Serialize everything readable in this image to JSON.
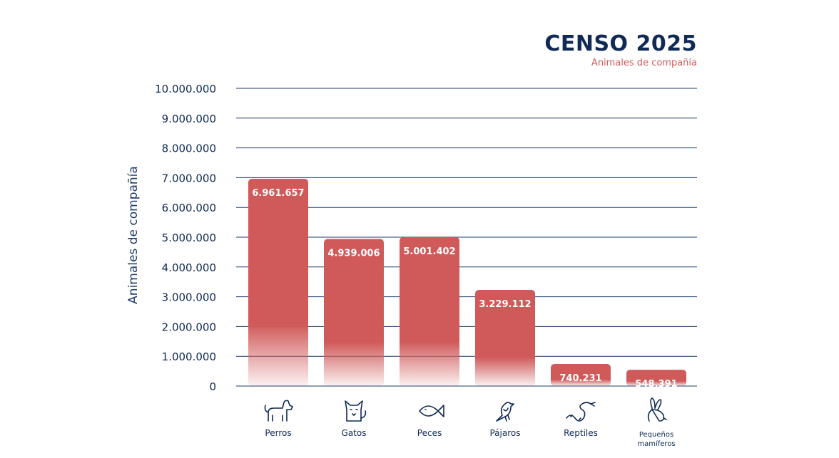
{
  "chart_data": {
    "type": "bar",
    "title": "CENSO 2025",
    "subtitle": "Animales de compañía",
    "ylabel": "Animales de compañía",
    "xlabel": "",
    "ylim": [
      0,
      10000000
    ],
    "grid": true,
    "categories": [
      "Perros",
      "Gatos",
      "Peces",
      "Pájaros",
      "Reptiles",
      "Pequeños mamíferos"
    ],
    "category_lines": [
      [
        "Perros"
      ],
      [
        "Gatos"
      ],
      [
        "Peces"
      ],
      [
        "Pájaros"
      ],
      [
        "Reptiles"
      ],
      [
        "Pequeños",
        "mamíferos"
      ]
    ],
    "values": [
      6961657,
      4939006,
      5001402,
      3229112,
      740231,
      548391
    ],
    "value_labels": [
      "6.961.657",
      "4.939.006",
      "5.001.402",
      "3.229.112",
      "740.231",
      "548.391"
    ],
    "ticks": [
      {
        "value": 0,
        "label": "0"
      },
      {
        "value": 1000000,
        "label": "1.000.000"
      },
      {
        "value": 2000000,
        "label": "2.000.000"
      },
      {
        "value": 3000000,
        "label": "3.000.000"
      },
      {
        "value": 4000000,
        "label": "4.000.000"
      },
      {
        "value": 5000000,
        "label": "5.000.000"
      },
      {
        "value": 6000000,
        "label": "6.000.000"
      },
      {
        "value": 7000000,
        "label": "7.000.000"
      },
      {
        "value": 8000000,
        "label": "8.000.000"
      },
      {
        "value": 9000000,
        "label": "9.000.000"
      },
      {
        "value": 10000000,
        "label": "10.000.000"
      }
    ],
    "icons": [
      "dog-icon",
      "cat-icon",
      "fish-icon",
      "bird-icon",
      "snake-icon",
      "rabbit-icon"
    ],
    "colors": {
      "bar": "#d05a5a",
      "grid": "#1d3b6b",
      "text": "#0f2a55",
      "accent": "#d45a5a"
    }
  }
}
